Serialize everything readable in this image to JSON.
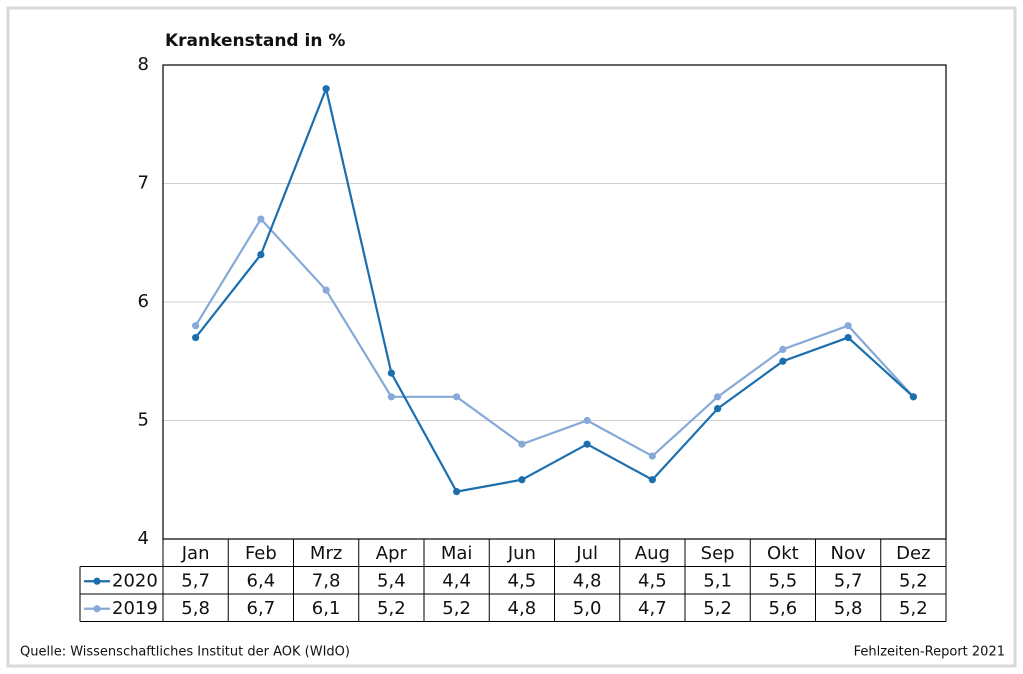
{
  "chart_data": {
    "type": "line",
    "title": "Krankenstand in %",
    "categories": [
      "Jan",
      "Feb",
      "Mrz",
      "Apr",
      "Mai",
      "Jun",
      "Jul",
      "Aug",
      "Sep",
      "Okt",
      "Nov",
      "Dez"
    ],
    "series": [
      {
        "name": "2020",
        "color": "#1b6fae",
        "values": [
          5.7,
          6.4,
          7.8,
          5.4,
          4.4,
          4.5,
          4.8,
          4.5,
          5.1,
          5.5,
          5.7,
          5.2
        ],
        "value_labels": [
          "5,7",
          "6,4",
          "7,8",
          "5,4",
          "4,4",
          "4,5",
          "4,8",
          "4,5",
          "5,1",
          "5,5",
          "5,7",
          "5,2"
        ]
      },
      {
        "name": "2019",
        "color": "#86a9d9",
        "values": [
          5.8,
          6.7,
          6.1,
          5.2,
          5.2,
          4.8,
          5.0,
          4.7,
          5.2,
          5.6,
          5.8,
          5.2
        ],
        "value_labels": [
          "5,8",
          "6,7",
          "6,1",
          "5,2",
          "5,2",
          "4,8",
          "5,0",
          "4,7",
          "5,2",
          "5,6",
          "5,8",
          "5,2"
        ]
      }
    ],
    "ylim": [
      4,
      8
    ],
    "yticks": [
      4,
      5,
      6,
      7,
      8
    ],
    "grid": true,
    "annotations": [
      "Quelle: Wissenschaftliches Institut der AOK (WIdO)",
      "Fehlzeiten-Report 2021"
    ]
  }
}
